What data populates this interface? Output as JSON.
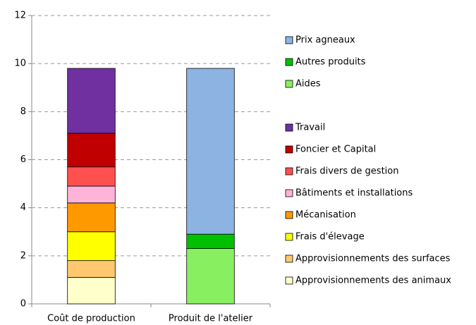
{
  "chart_data": {
    "type": "stacked_bar",
    "categories": [
      "Coût de production",
      "Produit de l'atelier"
    ],
    "ylim": [
      0,
      12
    ],
    "yticks": [
      0,
      2,
      4,
      6,
      8,
      10,
      12
    ],
    "grid": true,
    "legend": "right",
    "series": [
      {
        "name": "Prix agneaux",
        "color": "#8db3e2",
        "values": [
          null,
          6.9
        ]
      },
      {
        "name": "Autres produits",
        "color": "#00c000",
        "values": [
          null,
          0.6
        ]
      },
      {
        "name": "Aides",
        "color": "#88f060",
        "values": [
          null,
          2.3
        ]
      },
      {
        "name": "Travail",
        "color": "#7030a0",
        "values": [
          2.7,
          null
        ]
      },
      {
        "name": "Foncier et Capital",
        "color": "#c00000",
        "values": [
          1.4,
          null
        ]
      },
      {
        "name": "Frais divers de gestion",
        "color": "#ff5050",
        "values": [
          0.8,
          null
        ]
      },
      {
        "name": "Bâtiments et installations",
        "color": "#ffb3d9",
        "values": [
          0.7,
          null
        ]
      },
      {
        "name": "Mécanisation",
        "color": "#ff9900",
        "values": [
          1.2,
          null
        ]
      },
      {
        "name": "Frais d'élevage",
        "color": "#ffff00",
        "values": [
          1.2,
          null
        ]
      },
      {
        "name": "Approvisionnements des surfaces",
        "color": "#ffc870",
        "values": [
          0.7,
          null
        ]
      },
      {
        "name": "Approvisionnements des animaux",
        "color": "#ffffcc",
        "values": [
          1.1,
          null
        ]
      }
    ]
  }
}
